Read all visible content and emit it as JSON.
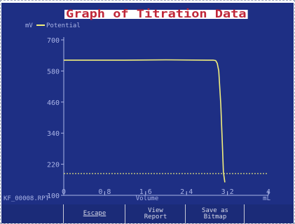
{
  "window": {
    "file_name": "KF_00008.RPT"
  },
  "softkeys": [
    {
      "label": ""
    },
    {
      "label": "Escape"
    },
    {
      "label": "View\nReport"
    },
    {
      "label": "Save as\nBitmap"
    },
    {
      "label": ""
    }
  ],
  "chart_data": {
    "type": "line",
    "title": "Graph of Titration Data",
    "xlabel": "Volume",
    "xunit": "mL",
    "ylabel": "mV",
    "legend_entry": "Potential",
    "legend_position": "top-left",
    "xlim": [
      0,
      4
    ],
    "ylim": [
      100,
      700
    ],
    "x_ticks": [
      "0",
      "0.8",
      "1.6",
      "2.4",
      "3.2",
      "4"
    ],
    "y_ticks": [
      "100",
      "220",
      "340",
      "460",
      "580",
      "700"
    ],
    "grid": false,
    "colors": {
      "background": "#1e2f84",
      "axis": "#aab4e6",
      "title_text": "#c0283a",
      "title_bg": "#ffffff",
      "series": "#f3ef7c",
      "threshold": "#f3ef7c"
    },
    "series": [
      {
        "name": "Potential",
        "x": [
          0.0,
          0.4,
          1.2,
          2.0,
          2.8,
          2.92,
          2.97,
          3.0,
          3.03,
          3.07,
          3.1,
          3.12,
          3.15
        ],
        "y": [
          622,
          622,
          622,
          623,
          622,
          622,
          620,
          610,
          580,
          450,
          300,
          190,
          150
        ]
      }
    ],
    "threshold_y": 184
  }
}
